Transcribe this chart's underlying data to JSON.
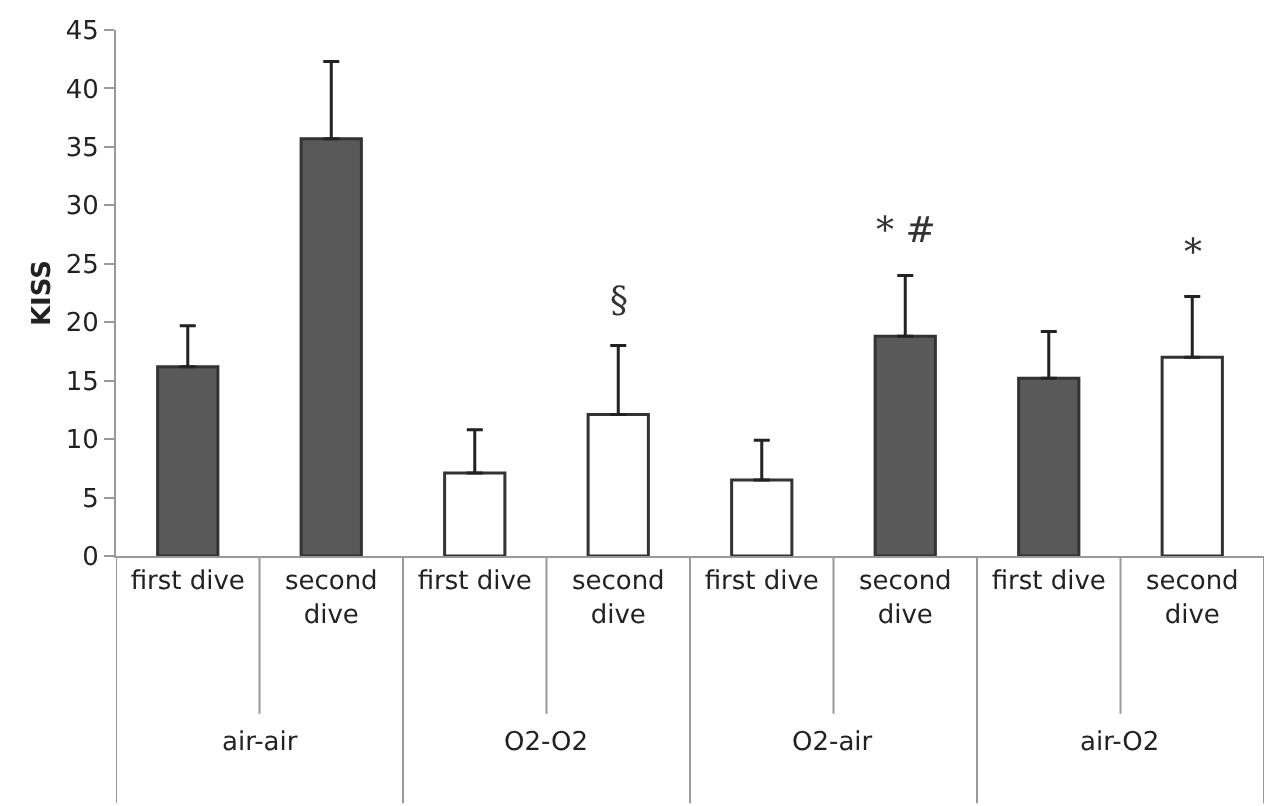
{
  "chart_data": {
    "type": "bar",
    "ylabel": "KISS",
    "categories": [
      "first dive",
      "second dive",
      "first dive",
      "second dive",
      "first dive",
      "second dive",
      "first dive",
      "second dive"
    ],
    "values": [
      16.2,
      35.7,
      7.1,
      12.1,
      6.5,
      18.8,
      15.2,
      17.0
    ],
    "errors": [
      [
        16.2,
        19.7
      ],
      [
        35.7,
        42.3
      ],
      [
        7.1,
        10.8
      ],
      [
        12.1,
        18.0
      ],
      [
        6.5,
        9.9
      ],
      [
        18.8,
        24.0
      ],
      [
        15.2,
        19.2
      ],
      [
        17.0,
        22.2
      ]
    ],
    "colors": [
      "#595959",
      "#595959",
      "#ffffff",
      "#ffffff",
      "#ffffff",
      "#595959",
      "#595959",
      "#ffffff"
    ],
    "value_labels": [
      null,
      null,
      null,
      "§",
      null,
      "* #",
      null,
      "*"
    ],
    "annotations": [
      "air-air",
      "O2-O2",
      "O2-air",
      "air-O2"
    ],
    "ylim": [
      0,
      45
    ],
    "yticks": [
      0,
      5,
      10,
      15,
      20,
      25,
      30,
      35,
      40,
      45
    ],
    "legend": false
  }
}
